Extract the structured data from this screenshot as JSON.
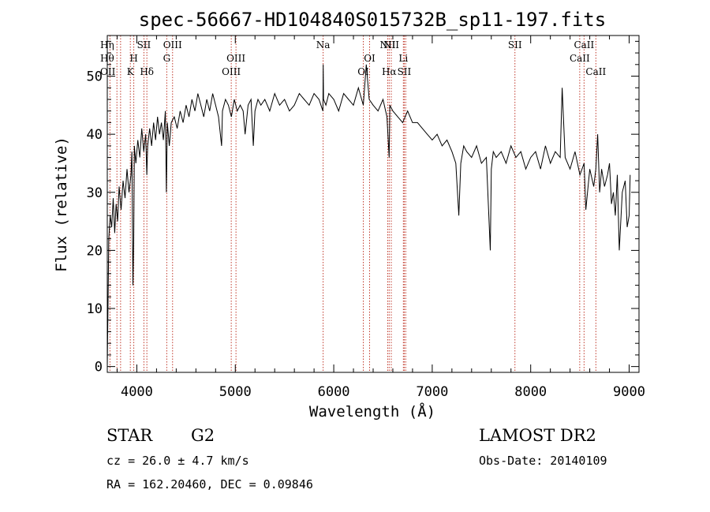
{
  "chart_data": {
    "type": "line",
    "title": "spec-56667-HD104840S015732B_sp11-197.fits",
    "xlabel": "Wavelength (Å)",
    "ylabel": "Flux (relative)",
    "xlim": [
      3700,
      9100
    ],
    "ylim": [
      -1,
      57
    ],
    "xticks": [
      {
        "value": 4000,
        "label": "4000"
      },
      {
        "value": 5000,
        "label": "5000"
      },
      {
        "value": 6000,
        "label": "6000"
      },
      {
        "value": 7000,
        "label": "7000"
      },
      {
        "value": 8000,
        "label": "8000"
      },
      {
        "value": 9000,
        "label": "9000"
      }
    ],
    "yticks": [
      {
        "value": 0,
        "label": "0"
      },
      {
        "value": 10,
        "label": "10"
      },
      {
        "value": 20,
        "label": "20"
      },
      {
        "value": 30,
        "label": "30"
      },
      {
        "value": 40,
        "label": "40"
      },
      {
        "value": 50,
        "label": "50"
      }
    ],
    "grid": false,
    "series": [
      {
        "x": [
          3700,
          3715,
          3730,
          3745,
          3760,
          3775,
          3790,
          3805,
          3820,
          3840,
          3860,
          3880,
          3900,
          3920,
          3940,
          3950,
          3960,
          3968,
          3975,
          3990,
          4010,
          4030,
          4050,
          4070,
          4090,
          4101,
          4110,
          4130,
          4150,
          4170,
          4190,
          4210,
          4230,
          4250,
          4270,
          4290,
          4300,
          4310,
          4330,
          4350,
          4380,
          4410,
          4440,
          4470,
          4500,
          4530,
          4560,
          4590,
          4620,
          4650,
          4680,
          4710,
          4740,
          4770,
          4800,
          4830,
          4861,
          4870,
          4900,
          4930,
          4960,
          4990,
          5020,
          5050,
          5080,
          5100,
          5130,
          5160,
          5183,
          5200,
          5230,
          5260,
          5300,
          5350,
          5400,
          5450,
          5500,
          5550,
          5600,
          5650,
          5700,
          5750,
          5800,
          5850,
          5890,
          5893,
          5896,
          5920,
          5950,
          6000,
          6050,
          6100,
          6150,
          6200,
          6250,
          6300,
          6330,
          6360,
          6400,
          6450,
          6500,
          6540,
          6563,
          6570,
          6600,
          6650,
          6700,
          6750,
          6800,
          6850,
          6900,
          6950,
          7000,
          7050,
          7100,
          7150,
          7200,
          7240,
          7270,
          7290,
          7320,
          7350,
          7400,
          7450,
          7500,
          7550,
          7590,
          7600,
          7620,
          7650,
          7700,
          7750,
          7800,
          7850,
          7900,
          7950,
          8000,
          8050,
          8100,
          8150,
          8200,
          8250,
          8300,
          8320,
          8350,
          8400,
          8450,
          8500,
          8542,
          8560,
          8600,
          8640,
          8662,
          8680,
          8700,
          8720,
          8750,
          8780,
          8800,
          8820,
          8840,
          8860,
          8880,
          8900,
          8930,
          8960,
          8980,
          9000,
          9010
        ],
        "y": [
          0,
          22,
          26,
          24,
          29,
          23,
          28,
          25,
          31,
          27,
          32,
          29,
          34,
          30,
          33,
          37,
          14,
          22,
          38,
          35,
          39,
          36,
          41,
          37,
          40,
          33,
          38,
          41,
          38,
          42,
          39,
          43,
          40,
          42,
          39,
          44,
          30,
          42,
          38,
          42,
          43,
          41,
          44,
          42,
          45,
          43,
          46,
          44,
          47,
          45,
          43,
          46,
          44,
          47,
          45,
          43,
          38,
          44,
          46,
          45,
          43,
          46,
          44,
          45,
          44,
          40,
          45,
          46,
          38,
          44,
          46,
          45,
          46,
          44,
          47,
          45,
          46,
          44,
          45,
          47,
          46,
          45,
          47,
          46,
          44,
          52,
          46,
          45,
          47,
          46,
          44,
          47,
          46,
          45,
          48,
          45,
          52,
          46,
          45,
          44,
          46,
          43,
          36,
          45,
          44,
          43,
          42,
          44,
          42,
          42,
          41,
          40,
          39,
          40,
          38,
          39,
          37,
          35,
          26,
          35,
          38,
          37,
          36,
          38,
          35,
          36,
          20,
          34,
          37,
          36,
          37,
          35,
          38,
          36,
          37,
          34,
          36,
          37,
          34,
          38,
          35,
          37,
          36,
          48,
          36,
          34,
          37,
          33,
          35,
          27,
          34,
          31,
          34,
          40,
          30,
          34,
          31,
          33,
          35,
          28,
          30,
          26,
          33,
          20,
          30,
          32,
          24,
          26,
          33
        ]
      }
    ],
    "lines": [
      {
        "x": 3727,
        "label": "OII",
        "tier": 3,
        "side": "left"
      },
      {
        "x": 3798,
        "label": "Hθ",
        "tier": 2,
        "side": "left"
      },
      {
        "x": 3835,
        "label": "Hη",
        "tier": 1,
        "side": "left"
      },
      {
        "x": 3934,
        "label": "K",
        "tier": 3,
        "side": "center"
      },
      {
        "x": 3969,
        "label": "H",
        "tier": 2,
        "side": "center"
      },
      {
        "x": 4072,
        "label": "SII",
        "tier": 1,
        "side": "center"
      },
      {
        "x": 4102,
        "label": "Hδ",
        "tier": 3,
        "side": "center"
      },
      {
        "x": 4304,
        "label": "G",
        "tier": 2,
        "side": "center"
      },
      {
        "x": 4363,
        "label": "OIII",
        "tier": 1,
        "side": "center"
      },
      {
        "x": 4959,
        "label": "OIII",
        "tier": 3,
        "side": "center"
      },
      {
        "x": 5007,
        "label": "OIII",
        "tier": 2,
        "side": "center"
      },
      {
        "x": 5892,
        "label": "Na",
        "tier": 1,
        "side": "center"
      },
      {
        "x": 6300,
        "label": "OI",
        "tier": 3,
        "side": "center"
      },
      {
        "x": 6364,
        "label": "OI",
        "tier": 2,
        "side": "center"
      },
      {
        "x": 6548,
        "label": "NII",
        "tier": 1,
        "side": "center"
      },
      {
        "x": 6563,
        "label": "Hα",
        "tier": 3,
        "side": "center"
      },
      {
        "x": 6584,
        "label": "NII",
        "tier": 1,
        "side": "center"
      },
      {
        "x": 6707,
        "label": "Li",
        "tier": 2,
        "side": "center"
      },
      {
        "x": 6716,
        "label": "SII",
        "tier": 3,
        "side": "center"
      },
      {
        "x": 6731,
        "label": "",
        "tier": 3,
        "side": "center"
      },
      {
        "x": 7840,
        "label": "SII",
        "tier": 1,
        "side": "center"
      },
      {
        "x": 8498,
        "label": "CaII",
        "tier": 2,
        "side": "center"
      },
      {
        "x": 8542,
        "label": "CaII",
        "tier": 1,
        "side": "center"
      },
      {
        "x": 8662,
        "label": "CaII",
        "tier": 3,
        "side": "center"
      }
    ],
    "line_color": "#c0392b"
  },
  "info": {
    "object_class": "STAR",
    "subclass": "G2",
    "survey": "LAMOST DR2",
    "redshift": "cz = 26.0 ± 4.7 km/s",
    "obs_date": "Obs-Date: 20140109",
    "coords": "RA = 162.20460, DEC =    0.09846"
  }
}
